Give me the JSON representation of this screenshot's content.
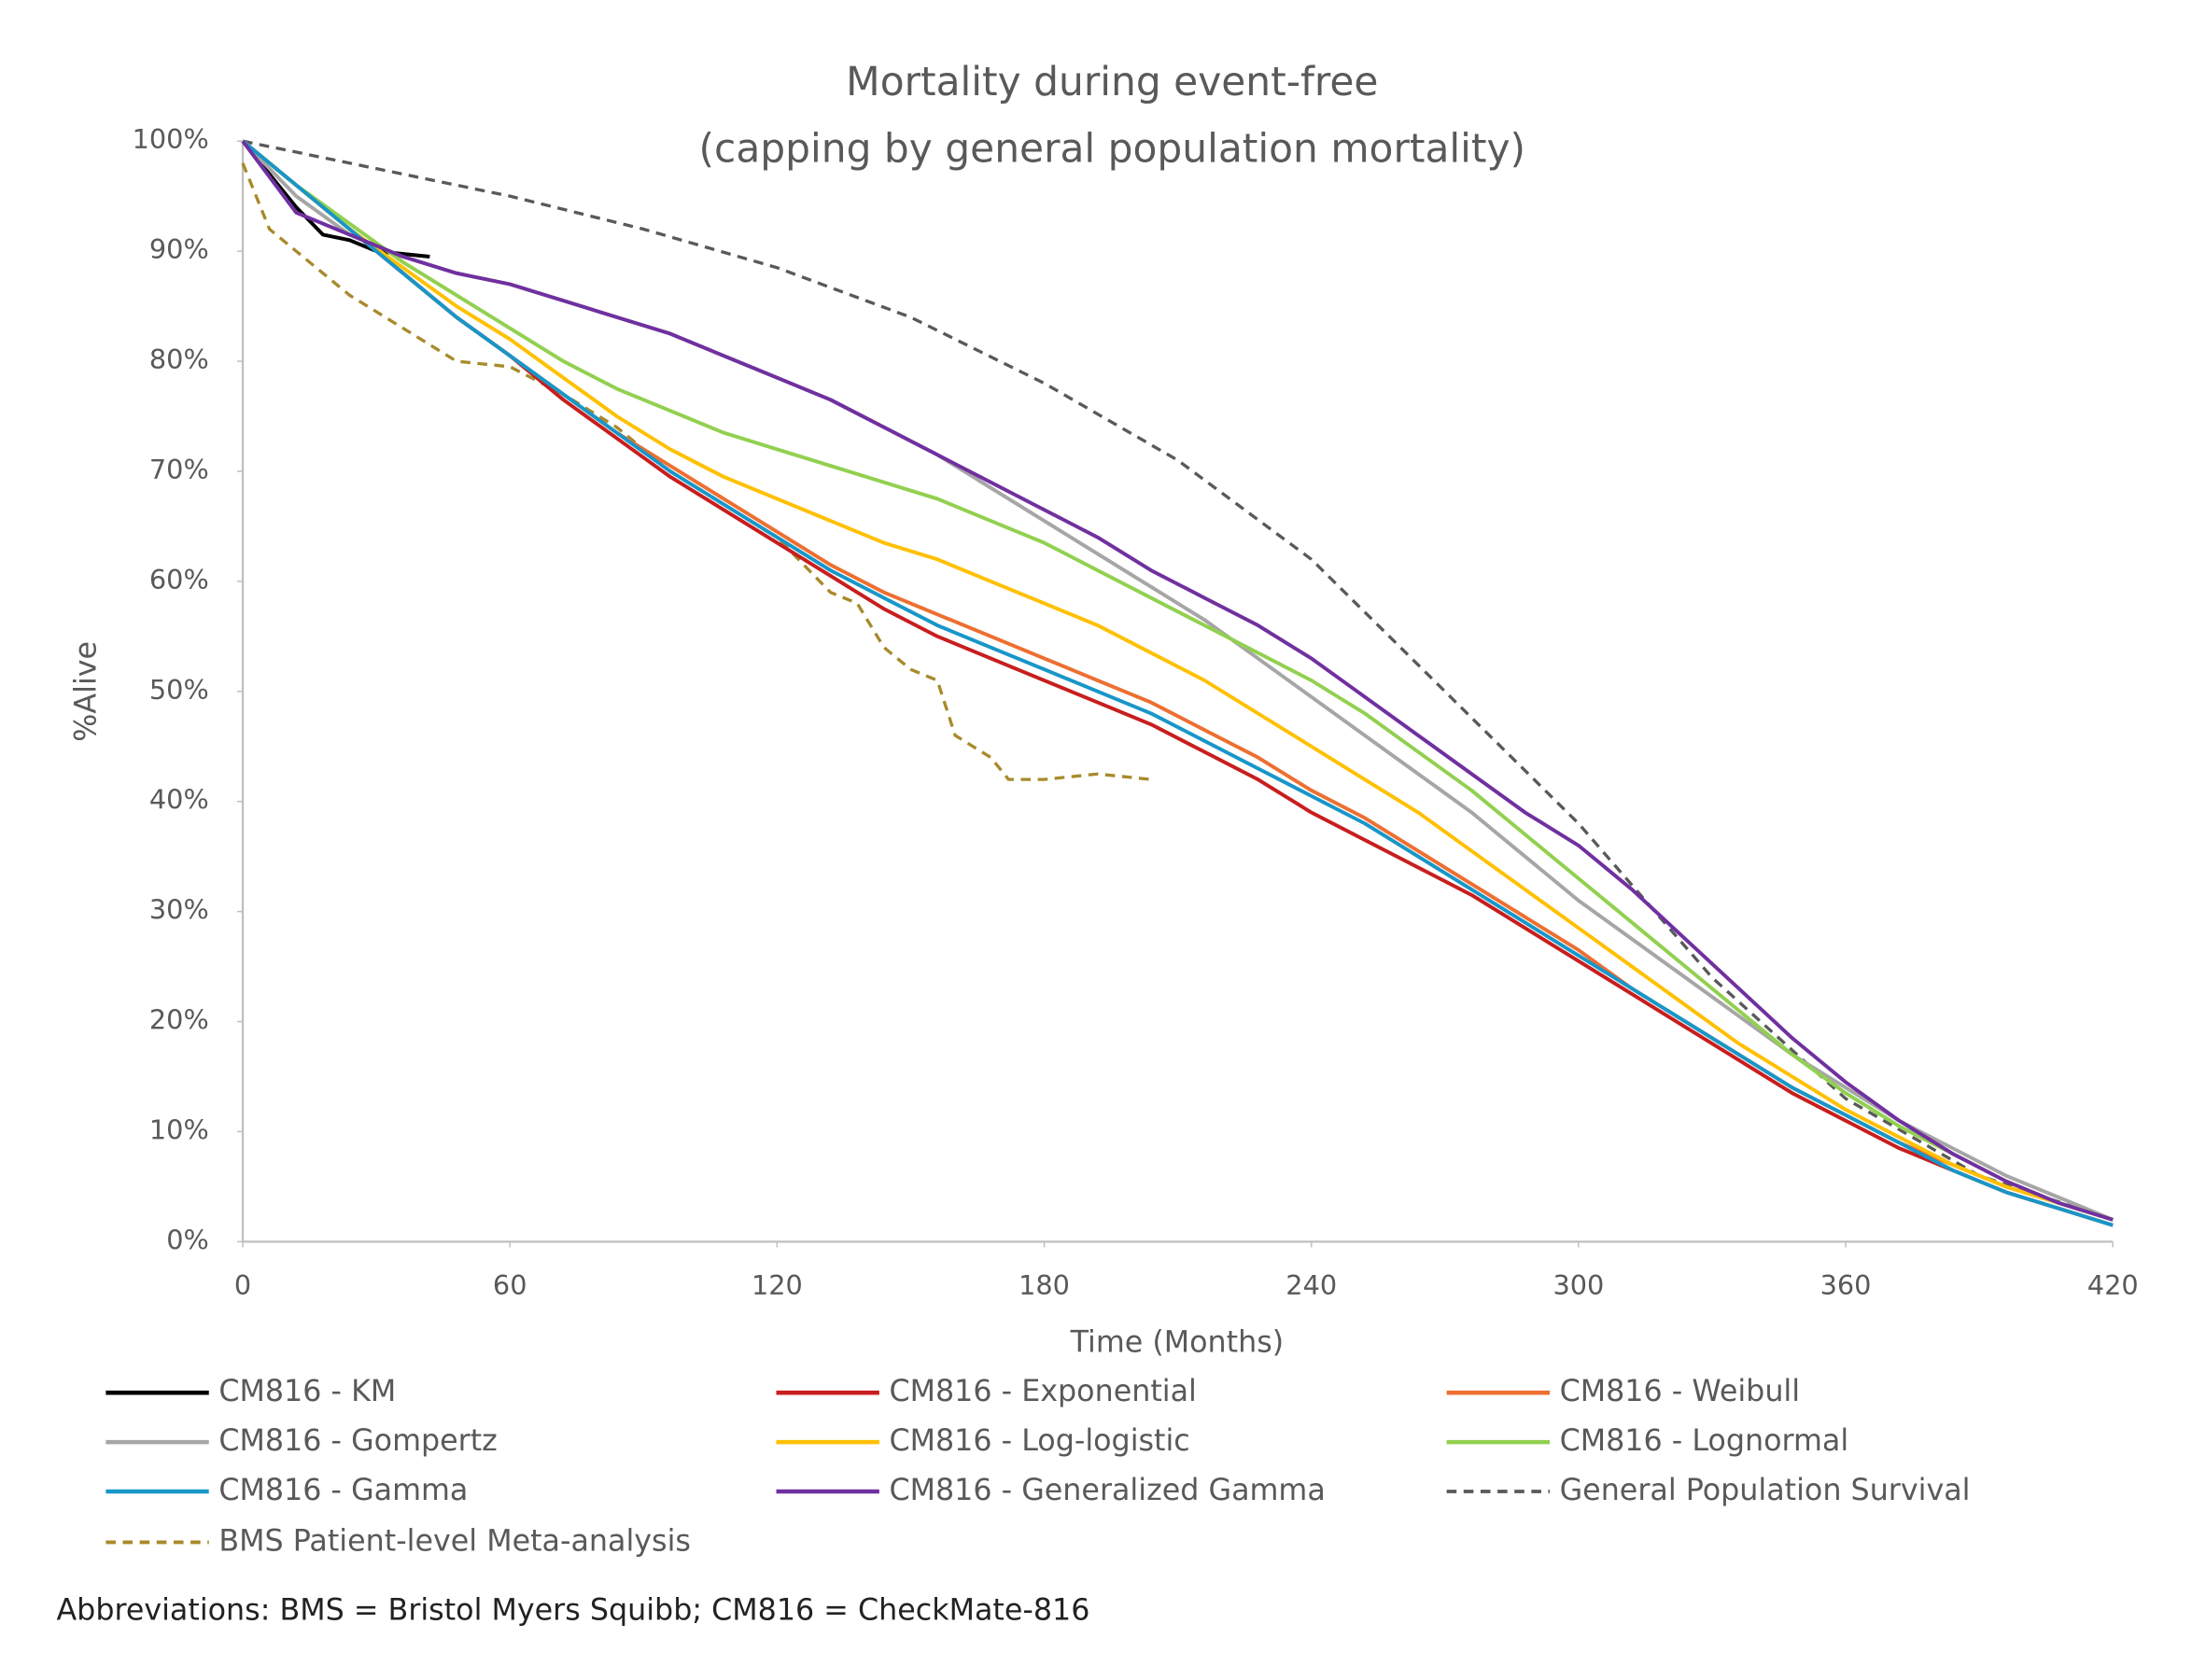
{
  "chart_data": {
    "type": "line",
    "title": "Mortality during event-free",
    "subtitle": "(capping by general population mortality)",
    "x_label": "Time (Months)",
    "y_label": "%Alive",
    "footnote": "Abbreviations: BMS = Bristol Myers Squibb; CM816 = CheckMate-816",
    "xlim": [
      0,
      420
    ],
    "xticks": [
      0,
      60,
      120,
      180,
      240,
      300,
      360,
      420
    ],
    "ylim": [
      0,
      100
    ],
    "yticks": [
      {
        "value": 0,
        "label": "0%"
      },
      {
        "value": 10,
        "label": "10%"
      },
      {
        "value": 20,
        "label": "20%"
      },
      {
        "value": 30,
        "label": "30%"
      },
      {
        "value": 40,
        "label": "40%"
      },
      {
        "value": 50,
        "label": "50%"
      },
      {
        "value": 60,
        "label": "60%"
      },
      {
        "value": 70,
        "label": "70%"
      },
      {
        "value": 80,
        "label": "80%"
      },
      {
        "value": 90,
        "label": "90%"
      },
      {
        "value": 100,
        "label": "100%"
      }
    ],
    "grid": false,
    "legend": "bottom",
    "x": [
      0,
      12,
      24,
      36,
      48,
      60,
      72,
      84,
      96,
      108,
      120,
      132,
      144,
      156,
      168,
      180,
      192,
      204,
      216,
      228,
      240,
      252,
      264,
      276,
      288,
      300,
      312,
      324,
      336,
      348,
      360,
      372,
      384,
      396,
      408,
      420
    ],
    "series": [
      {
        "name": "CM816 - KM",
        "color": "#000000",
        "dashed": false,
        "x": [
          0,
          6,
          12,
          18,
          24,
          30,
          42
        ],
        "values": [
          100,
          97,
          94,
          91.5,
          91,
          90,
          89.5
        ]
      },
      {
        "name": "CM816 - Exponential",
        "color": "#c81e1e",
        "dashed": false,
        "values": [
          100,
          96,
          92,
          88,
          84,
          80.5,
          76.5,
          73,
          69.5,
          66.5,
          63.5,
          60.5,
          57.5,
          55,
          53,
          51,
          49,
          47,
          44.5,
          42,
          39,
          36.5,
          34,
          31.5,
          28.5,
          25.5,
          22.5,
          19.5,
          16.5,
          13.5,
          11,
          8.5,
          6.5,
          4.5,
          3,
          1.5
        ]
      },
      {
        "name": "CM816 - Weibull",
        "color": "#ed6f31",
        "dashed": false,
        "values": [
          100,
          96,
          92,
          88,
          84,
          80.5,
          77,
          73.5,
          70.5,
          67.5,
          64.5,
          61.5,
          59,
          57,
          55,
          53,
          51,
          49,
          46.5,
          44,
          41,
          38.5,
          35.5,
          32.5,
          29.5,
          26.5,
          23,
          20,
          17,
          14,
          11.5,
          9,
          7,
          5,
          3.5,
          2
        ]
      },
      {
        "name": "CM816 - Gompertz",
        "color": "#a6a6a6",
        "dashed": false,
        "values": [
          100,
          95,
          91.5,
          89.5,
          88,
          87,
          85.5,
          84,
          82.5,
          80.5,
          78.5,
          76.5,
          74,
          71.5,
          68.5,
          65.5,
          62.5,
          59.5,
          56.5,
          53,
          49.5,
          46,
          42.5,
          39,
          35,
          31,
          27.5,
          24,
          20.5,
          17,
          14,
          11,
          8.5,
          6,
          4,
          2
        ]
      },
      {
        "name": "CM816 - Log-logistic",
        "color": "#ffc000",
        "dashed": false,
        "values": [
          100,
          96,
          92,
          88.5,
          85,
          82,
          78.5,
          75,
          72,
          69.5,
          67.5,
          65.5,
          63.5,
          62,
          60,
          58,
          56,
          53.5,
          51,
          48,
          45,
          42,
          39,
          35.5,
          32,
          28.5,
          25,
          21.5,
          18,
          15,
          12,
          9.5,
          7,
          5,
          3.5,
          2
        ]
      },
      {
        "name": "CM816 - Lognormal",
        "color": "#92d050",
        "dashed": false,
        "values": [
          100,
          96,
          92.5,
          89,
          86,
          83,
          80,
          77.5,
          75.5,
          73.5,
          72,
          70.5,
          69,
          67.5,
          65.5,
          63.5,
          61,
          58.5,
          56,
          53.5,
          51,
          48,
          44.5,
          41,
          37,
          33,
          29,
          25,
          21,
          17,
          13.5,
          10.5,
          8,
          5.5,
          3.5,
          2
        ]
      },
      {
        "name": "CM816 - Gamma",
        "color": "#1896c8",
        "dashed": false,
        "values": [
          100,
          96,
          92,
          88,
          84,
          80.5,
          77,
          73.5,
          70,
          67,
          64,
          61,
          58.5,
          56,
          54,
          52,
          50,
          48,
          45.5,
          43,
          40.5,
          38,
          35,
          32,
          29,
          26,
          23,
          20,
          17,
          14,
          11.5,
          9,
          6.5,
          4.5,
          3,
          1.5
        ]
      },
      {
        "name": "CM816 - Generalized Gamma",
        "color": "#7030a0",
        "dashed": false,
        "values": [
          100,
          93.5,
          91.5,
          89.5,
          88,
          87,
          85.5,
          84,
          82.5,
          80.5,
          78.5,
          76.5,
          74,
          71.5,
          69,
          66.5,
          64,
          61,
          58.5,
          56,
          53,
          49.5,
          46,
          42.5,
          39,
          36,
          32,
          27.5,
          23,
          18.5,
          14.5,
          11,
          8,
          5.5,
          3.5,
          2
        ]
      },
      {
        "name": "General Population Survival",
        "color": "#595959",
        "dashed": true,
        "x": [
          0,
          30,
          60,
          90,
          120,
          150,
          180,
          210,
          240,
          270,
          300,
          330,
          360,
          390,
          420
        ],
        "values": [
          100,
          97.5,
          95,
          92,
          88.5,
          84,
          78,
          71,
          62,
          50,
          38,
          24,
          13,
          6,
          2
        ]
      },
      {
        "name": "BMS Patient-level Meta-analysis",
        "color": "#a88a2a",
        "dashed": true,
        "x": [
          0,
          3,
          6,
          12,
          18,
          24,
          36,
          48,
          60,
          72,
          84,
          96,
          108,
          120,
          132,
          138,
          144,
          150,
          156,
          160,
          168,
          172,
          180,
          192,
          204
        ],
        "values": [
          98,
          95,
          92,
          90,
          88,
          86,
          83,
          80,
          79.5,
          77,
          74,
          70,
          67,
          64,
          59,
          58,
          54,
          52,
          51,
          46,
          44,
          42,
          42,
          42.5,
          42
        ]
      }
    ]
  }
}
